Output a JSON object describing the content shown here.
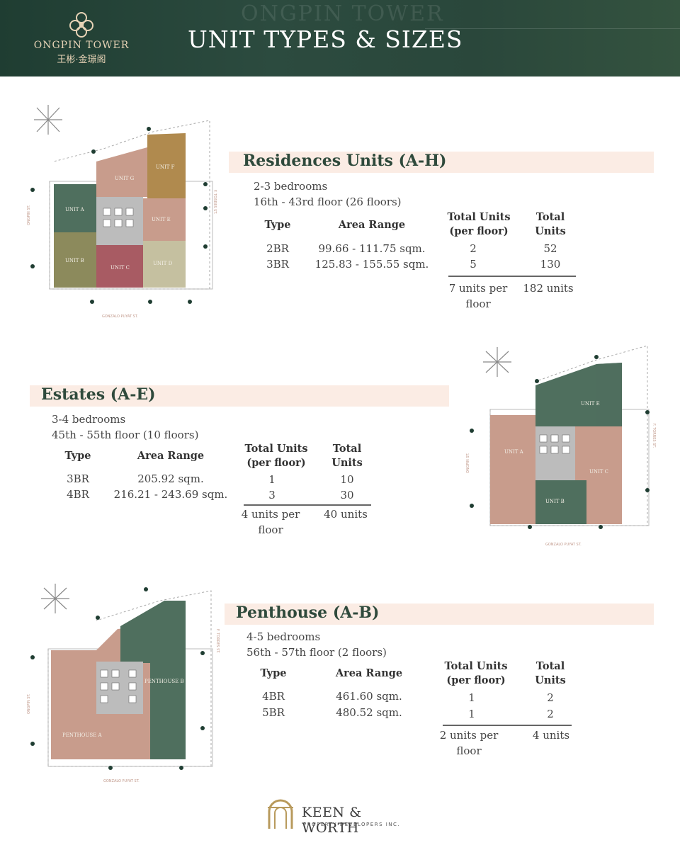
{
  "header": {
    "brand": "ONGPIN TOWER",
    "brand_cn": "王彬·金璟阁",
    "title": "UNIT TYPES & SIZES"
  },
  "sections": [
    {
      "title": "Residences Units (A-H)",
      "bedrooms": "2-3 bedrooms",
      "floors": "16th - 43rd floor (26 floors)",
      "headers": {
        "type": "Type",
        "area": "Area Range",
        "per_floor": "Total Units (per floor)",
        "total": "Total Units"
      },
      "rows": [
        {
          "type": "2BR",
          "area": "99.66 - 111.75 sqm.",
          "per_floor": "2",
          "total": "52"
        },
        {
          "type": "3BR",
          "area": "125.83 - 155.55 sqm.",
          "per_floor": "5",
          "total": "130"
        }
      ],
      "sum_per_floor": "7 units per floor",
      "sum_total": "182 units"
    },
    {
      "title": "Estates (A-E)",
      "bedrooms": "3-4 bedrooms",
      "floors": "45th - 55th floor (10 floors)",
      "headers": {
        "type": "Type",
        "area": "Area Range",
        "per_floor": "Total Units (per floor)",
        "total": "Total Units"
      },
      "rows": [
        {
          "type": "3BR",
          "area": "205.92 sqm.",
          "per_floor": "1",
          "total": "10"
        },
        {
          "type": "4BR",
          "area": "216.21 - 243.69 sqm.",
          "per_floor": "3",
          "total": "30"
        }
      ],
      "sum_per_floor": "4 units per floor",
      "sum_total": "40 units"
    },
    {
      "title": "Penthouse (A-B)",
      "bedrooms": "4-5 bedrooms",
      "floors": "56th - 57th floor (2 floors)",
      "headers": {
        "type": "Type",
        "area": "Area Range",
        "per_floor": "Total Units (per floor)",
        "total": "Total Units"
      },
      "rows": [
        {
          "type": "4BR",
          "area": "461.60 sqm.",
          "per_floor": "1",
          "total": "2"
        },
        {
          "type": "5BR",
          "area": "480.52 sqm.",
          "per_floor": "1",
          "total": "2"
        }
      ],
      "sum_per_floor": "2 units per floor",
      "sum_total": "4 units"
    }
  ],
  "plans": {
    "street_left": "ONGPIN ST.",
    "street_right": "F. TORRES ST.",
    "street_bottom": "GONZALO PUYAT ST.",
    "residences_units": [
      "UNIT A",
      "UNIT B",
      "UNIT C",
      "UNIT D",
      "UNIT E",
      "UNIT F",
      "UNIT G"
    ],
    "estates_units": [
      "UNIT A",
      "UNIT B",
      "UNIT C",
      "UNIT E"
    ],
    "penthouse_units": [
      "PENTHOUSE A",
      "PENTHOUSE B"
    ]
  },
  "footer": {
    "brand": "KEEN & WORTH",
    "sub": "PROPERTY DEVELOPERS INC."
  },
  "colors": {
    "header_green": "#2a473b",
    "accent_bar": "#fbece4",
    "unit_green": "#4f6f5e",
    "unit_pink": "#c89c8c",
    "unit_rose": "#a85b63",
    "unit_gold": "#b08a4e",
    "unit_olive": "#8c8a5c",
    "core_gray": "#bcbcbc"
  }
}
